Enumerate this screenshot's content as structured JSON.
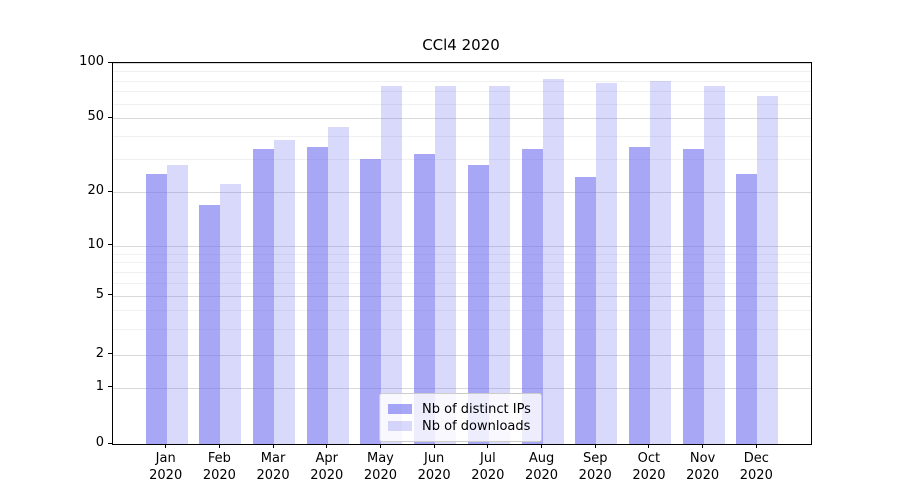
{
  "chart_data": {
    "type": "bar",
    "title": "CCl4 2020",
    "categories": [
      "Jan 2020",
      "Feb 2020",
      "Mar 2020",
      "Apr 2020",
      "May 2020",
      "Jun 2020",
      "Jul 2020",
      "Aug 2020",
      "Sep 2020",
      "Oct 2020",
      "Nov 2020",
      "Dec 2020"
    ],
    "series": [
      {
        "name": "Nb of distinct IPs",
        "color": "rgba(108,108,240,0.60)",
        "values": [
          25,
          17,
          34,
          35,
          30,
          32,
          28,
          34,
          24,
          35,
          34,
          25
        ]
      },
      {
        "name": "Nb of downloads",
        "color": "rgba(108,108,240,0.26)",
        "values": [
          28,
          22,
          38,
          45,
          75,
          75,
          75,
          82,
          78,
          80,
          75,
          66
        ]
      }
    ],
    "xlabel": "",
    "ylabel": "",
    "ylim": [
      0,
      100
    ],
    "yticks": [
      0,
      1,
      2,
      5,
      10,
      20,
      50,
      100
    ],
    "minor_gridline_values": [
      3,
      4,
      6,
      7,
      8,
      9,
      30,
      40,
      60,
      70,
      80,
      90
    ],
    "yscale": "symlog",
    "grid": "horizontal-major-and-minor",
    "legend_position": "lower center"
  },
  "colors": {
    "bar_distinct_ips_composite": "#a7a7f6",
    "bar_downloads_composite": "#d9d9fb",
    "grid_major": "#d9d9d9",
    "grid_minor": "#f0f0f0",
    "spine": "#000000",
    "legend_border": "#cccccc",
    "text": "#000000"
  }
}
